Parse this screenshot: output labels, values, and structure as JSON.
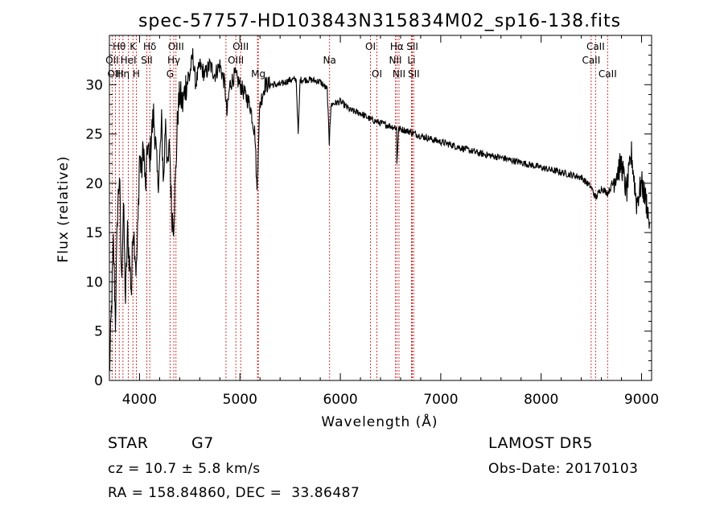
{
  "chart_data": {
    "type": "line",
    "title": "spec-57757-HD103843N315834M02_sp16-138.fits",
    "xlabel": "Wavelength (Å)",
    "ylabel": "Flux (relative)",
    "xlim": [
      3700,
      9100
    ],
    "ylim": [
      0,
      35
    ],
    "xticks": [
      4000,
      5000,
      6000,
      7000,
      8000,
      9000
    ],
    "yticks": [
      0,
      5,
      10,
      15,
      20,
      25,
      30
    ],
    "grid": false,
    "series": [
      {
        "values_x": [
          3700,
          3720,
          3740,
          3760,
          3780,
          3800,
          3820,
          3840,
          3860,
          3880,
          3900,
          3920,
          3935,
          3950,
          3968,
          3985,
          4000,
          4020,
          4040,
          4060,
          4080,
          4100,
          4120,
          4140,
          4160,
          4180,
          4200,
          4220,
          4240,
          4260,
          4280,
          4300,
          4320,
          4340,
          4360,
          4380,
          4400,
          4430,
          4460,
          4500,
          4530,
          4560,
          4600,
          4650,
          4700,
          4750,
          4800,
          4850,
          4870,
          4900,
          4950,
          5000,
          5050,
          5100,
          5150,
          5170,
          5183,
          5200,
          5250,
          5300,
          5400,
          5500,
          5560,
          5580,
          5600,
          5700,
          5800,
          5870,
          5890,
          5896,
          5910,
          6000,
          6100,
          6200,
          6300,
          6400,
          6500,
          6560,
          6563,
          6580,
          6600,
          6700,
          6800,
          7000,
          7200,
          7400,
          7600,
          7800,
          8000,
          8200,
          8400,
          8498,
          8542,
          8600,
          8662,
          8700,
          8750,
          8800,
          8850,
          8900,
          8950,
          9000,
          9050,
          9080
        ],
        "values_y": [
          0.5,
          7,
          14,
          6,
          17,
          21,
          10,
          18,
          8,
          15,
          12,
          9,
          16,
          14,
          11,
          16,
          23,
          21,
          24,
          19,
          24,
          22,
          25,
          27,
          24,
          20,
          22,
          26,
          20,
          27,
          21,
          24,
          17,
          16,
          21,
          27,
          29,
          28,
          30,
          31,
          33,
          30,
          32,
          31,
          32,
          31,
          32,
          30,
          27,
          30,
          31,
          30,
          29,
          28,
          25,
          19,
          24,
          28,
          30,
          30,
          30,
          30.5,
          30.5,
          25,
          30.5,
          30.5,
          30.3,
          29.5,
          24,
          26,
          28,
          28.3,
          27.4,
          27.1,
          26.5,
          26.1,
          25.8,
          25.6,
          22,
          25.5,
          25.5,
          25.2,
          24.8,
          24.2,
          23.6,
          23,
          22.6,
          22.1,
          21.6,
          21.1,
          20.6,
          19.6,
          18.5,
          19.5,
          19.0,
          19.7,
          21,
          22,
          19,
          23,
          18,
          20,
          18,
          16
        ]
      }
    ],
    "line_labels": [
      {
        "text": "Hθ",
        "x": 3798,
        "row": 1
      },
      {
        "text": "K",
        "x": 3934,
        "row": 1
      },
      {
        "text": "Hδ",
        "x": 4102,
        "row": 1
      },
      {
        "text": "OIII",
        "x": 4363,
        "row": 1
      },
      {
        "text": "OIII",
        "x": 5007,
        "row": 1
      },
      {
        "text": "OI",
        "x": 6300,
        "row": 1
      },
      {
        "text": "Hα",
        "x": 6563,
        "row": 1
      },
      {
        "text": "SII",
        "x": 6717,
        "row": 1
      },
      {
        "text": "CaII",
        "x": 8542,
        "row": 1
      },
      {
        "text": "OII",
        "x": 3727,
        "row": 2
      },
      {
        "text": "HeI",
        "x": 3889,
        "row": 2
      },
      {
        "text": "SII",
        "x": 4072,
        "row": 2
      },
      {
        "text": "Hγ",
        "x": 4341,
        "row": 2
      },
      {
        "text": "OIII",
        "x": 4959,
        "row": 2
      },
      {
        "text": "Na",
        "x": 5893,
        "row": 2
      },
      {
        "text": "NII",
        "x": 6548,
        "row": 2
      },
      {
        "text": "Li",
        "x": 6708,
        "row": 2
      },
      {
        "text": "CaII",
        "x": 8498,
        "row": 2
      },
      {
        "text": "OIII",
        "x": 3760,
        "row": 3
      },
      {
        "text": "Hη",
        "x": 3835,
        "row": 3
      },
      {
        "text": "H",
        "x": 3968,
        "row": 3
      },
      {
        "text": "G",
        "x": 4304,
        "row": 3
      },
      {
        "text": "Mg",
        "x": 5183,
        "row": 3
      },
      {
        "text": "OI",
        "x": 6364,
        "row": 3
      },
      {
        "text": "NII",
        "x": 6584,
        "row": 3
      },
      {
        "text": "SII",
        "x": 6731,
        "row": 3
      },
      {
        "text": "CaII",
        "x": 8662,
        "row": 3
      }
    ],
    "extra_line_x": [
      4861,
      5175,
      6716
    ]
  },
  "info": {
    "object_type": "STAR",
    "subclass": "G7",
    "cz": "cz = 10.7 ± 5.8 km/s",
    "coords": "RA = 158.84860, DEC =  33.86487",
    "survey": "LAMOST DR5",
    "obs_date": "Obs-Date: 20170103"
  },
  "colors": {
    "line_marker": "#cc2222",
    "spectrum": "#000000"
  }
}
